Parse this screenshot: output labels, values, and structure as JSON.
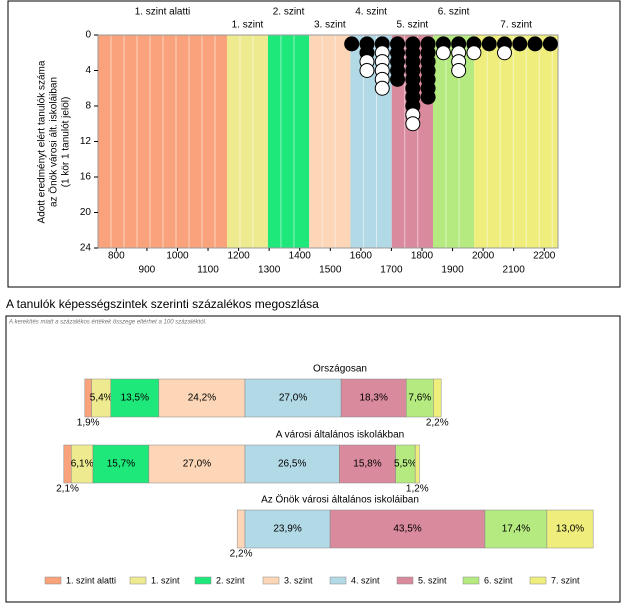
{
  "chart_data": [
    {
      "type": "dotplot",
      "band_names": [
        "1. szint alatti",
        "1. szint",
        "2. szint",
        "3. szint",
        "4. szint",
        "5. szint",
        "6. szint",
        "7. szint"
      ],
      "band_colors": [
        "#f9a27b",
        "#eeea90",
        "#1ee87a",
        "#fcd6b6",
        "#b2d9e6",
        "#d98a9c",
        "#b4ea80",
        "#efee7c"
      ],
      "band_bounds": [
        1162,
        1296,
        1431,
        1566,
        1701,
        1836,
        1971
      ],
      "ylabel_lines": [
        "Adott eredményt elért tanulók száma",
        "az Önök városi ált. iskoláiban",
        "(1 kör 1 tanulót jelöl)"
      ],
      "xlim": [
        740,
        2245
      ],
      "xticks": [
        800,
        900,
        1000,
        1100,
        1200,
        1300,
        1400,
        1500,
        1600,
        1700,
        1800,
        1900,
        2000,
        2100,
        2200
      ],
      "ylim": [
        0,
        24
      ],
      "yticks": [
        0,
        4,
        8,
        12,
        16,
        20,
        24
      ],
      "x": [
        1570,
        1620,
        1670,
        1720,
        1770,
        1820,
        1870,
        1920,
        1970,
        2020,
        2070,
        2120,
        2170,
        2220
      ],
      "filled": [
        1,
        2,
        1,
        5,
        8,
        7,
        1,
        1,
        1,
        1,
        1,
        1,
        1,
        1
      ],
      "hollow": [
        0,
        2,
        5,
        0,
        2,
        0,
        1,
        3,
        1,
        0,
        1,
        0,
        0,
        0
      ]
    },
    {
      "type": "stacked_bar_h",
      "title": "A tanulók képességszintek szerinti százalékos megoszlása",
      "note": "A kerekítés miatt a százalékos értékek összege eltérhet a 100 százaléktól.",
      "categories": [
        "Országosan",
        "A városi általános iskolákban",
        "Az Önök városi általános iskoláiban"
      ],
      "series": [
        {
          "name": "1. szint alatti",
          "color": "#f9a27b",
          "values": [
            1.9,
            2.1,
            0
          ],
          "value_labels": [
            "1,9%",
            "2,1%",
            null
          ]
        },
        {
          "name": "1. szint",
          "color": "#eeea90",
          "values": [
            5.4,
            6.1,
            0
          ],
          "value_labels": [
            "5,4%",
            "6,1%",
            null
          ]
        },
        {
          "name": "2. szint",
          "color": "#1ee87a",
          "values": [
            13.5,
            15.7,
            0
          ],
          "value_labels": [
            "13,5%",
            "15,7%",
            null
          ]
        },
        {
          "name": "3. szint",
          "color": "#fcd6b6",
          "values": [
            24.2,
            27.0,
            2.2
          ],
          "value_labels": [
            "24,2%",
            "27,0%",
            "2,2%"
          ]
        },
        {
          "name": "4. szint",
          "color": "#b2d9e6",
          "values": [
            27.0,
            26.5,
            23.9
          ],
          "value_labels": [
            "27,0%",
            "26,5%",
            "23,9%"
          ]
        },
        {
          "name": "5. szint",
          "color": "#d98a9c",
          "values": [
            18.3,
            15.8,
            43.5
          ],
          "value_labels": [
            "18,3%",
            "15,8%",
            "43,5%"
          ]
        },
        {
          "name": "6. szint",
          "color": "#b4ea80",
          "values": [
            7.6,
            5.5,
            17.4
          ],
          "value_labels": [
            "7,6%",
            "5,5%",
            "17,4%"
          ]
        },
        {
          "name": "7. szint",
          "color": "#efee7c",
          "values": [
            2.2,
            1.2,
            13.0
          ],
          "value_labels": [
            "2,2%",
            "1,2%",
            "13,0%"
          ]
        }
      ]
    }
  ]
}
